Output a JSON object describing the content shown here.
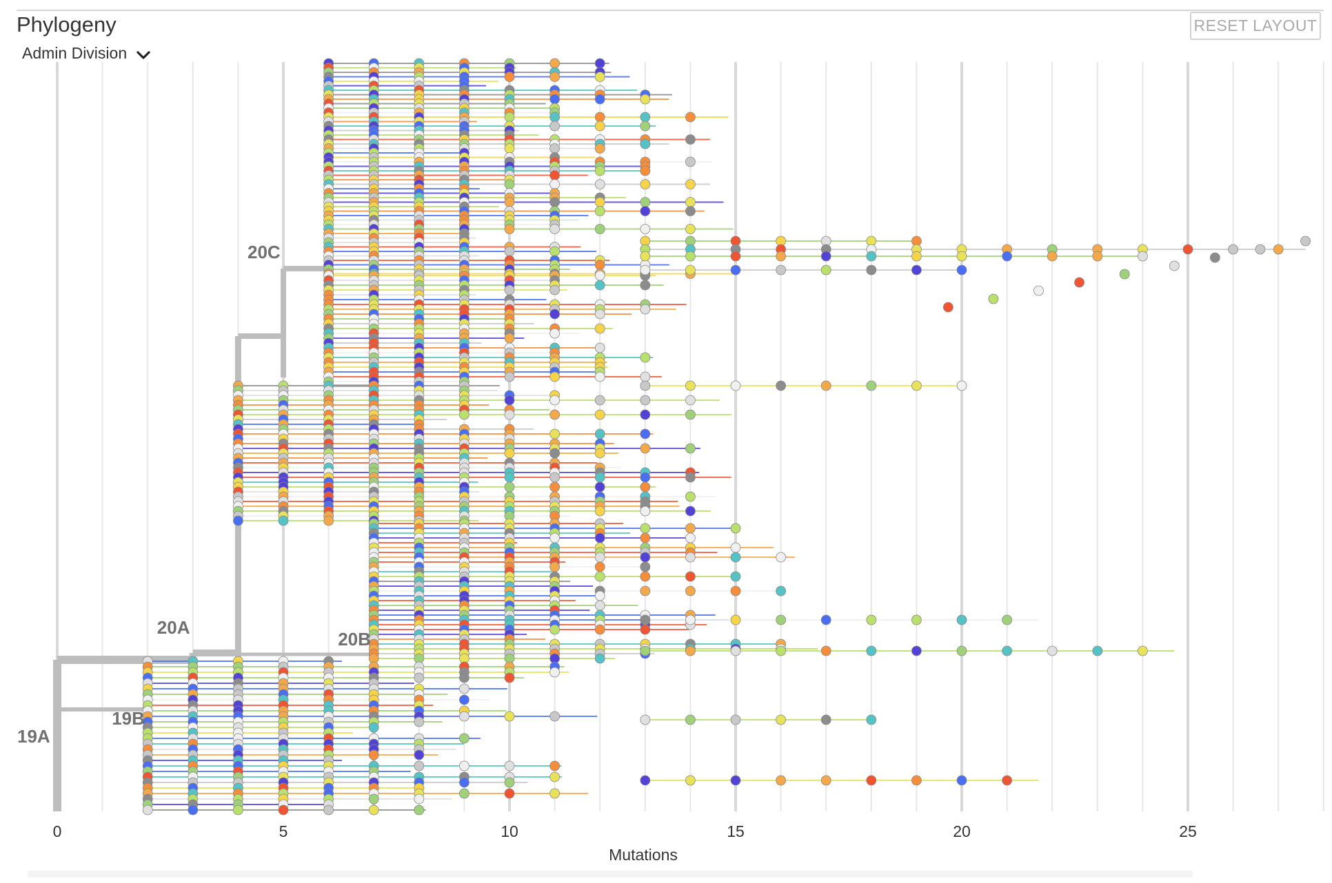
{
  "header": {
    "title": "Phylogeny",
    "color_by": "Admin Division",
    "reset_label": "RESET LAYOUT"
  },
  "icons": {
    "dropdown": "chevron-down-icon"
  },
  "colors": {
    "palette": [
      "#f6d44a",
      "#e7e25a",
      "#b9df6c",
      "#9fd07a",
      "#f3a84a",
      "#f58d3a",
      "#ef5533",
      "#4a6ef2",
      "#5243d6",
      "#55c3c5",
      "#e0e0e0",
      "#c8c8c8",
      "#8c8c8c",
      "#f0f0f0"
    ],
    "branch": "#bdbdbd",
    "grid": "#e6e6e6"
  },
  "chart_data": {
    "type": "scatter",
    "title": "Phylogeny",
    "xlabel": "Mutations",
    "ylabel": "",
    "xlim": [
      0,
      28
    ],
    "x_ticks": [
      0,
      5,
      10,
      15,
      20,
      25
    ],
    "x_tick_labels": [
      "0",
      "5",
      "10",
      "15",
      "20",
      "25"
    ],
    "grid": true,
    "clades": [
      {
        "name": "19A",
        "x": 0
      },
      {
        "name": "19B",
        "x": 2
      },
      {
        "name": "20A",
        "x": 3
      },
      {
        "name": "20B",
        "x": 7
      },
      {
        "name": "20C",
        "x": 5
      }
    ],
    "tip_extents": [
      {
        "x": 27.6,
        "color": "#c8c8c8"
      },
      {
        "x": 26.6,
        "color": "#c8c8c8"
      },
      {
        "x": 25.6,
        "color": "#8c8c8c"
      },
      {
        "x": 24.7,
        "color": "#e0e0e0"
      },
      {
        "x": 23.6,
        "color": "#9fd07a"
      },
      {
        "x": 22.6,
        "color": "#ef5533"
      },
      {
        "x": 21.7,
        "color": "#f0f0f0"
      },
      {
        "x": 20.7,
        "color": "#b9df6c"
      },
      {
        "x": 19.7,
        "color": "#ef5533"
      }
    ]
  }
}
